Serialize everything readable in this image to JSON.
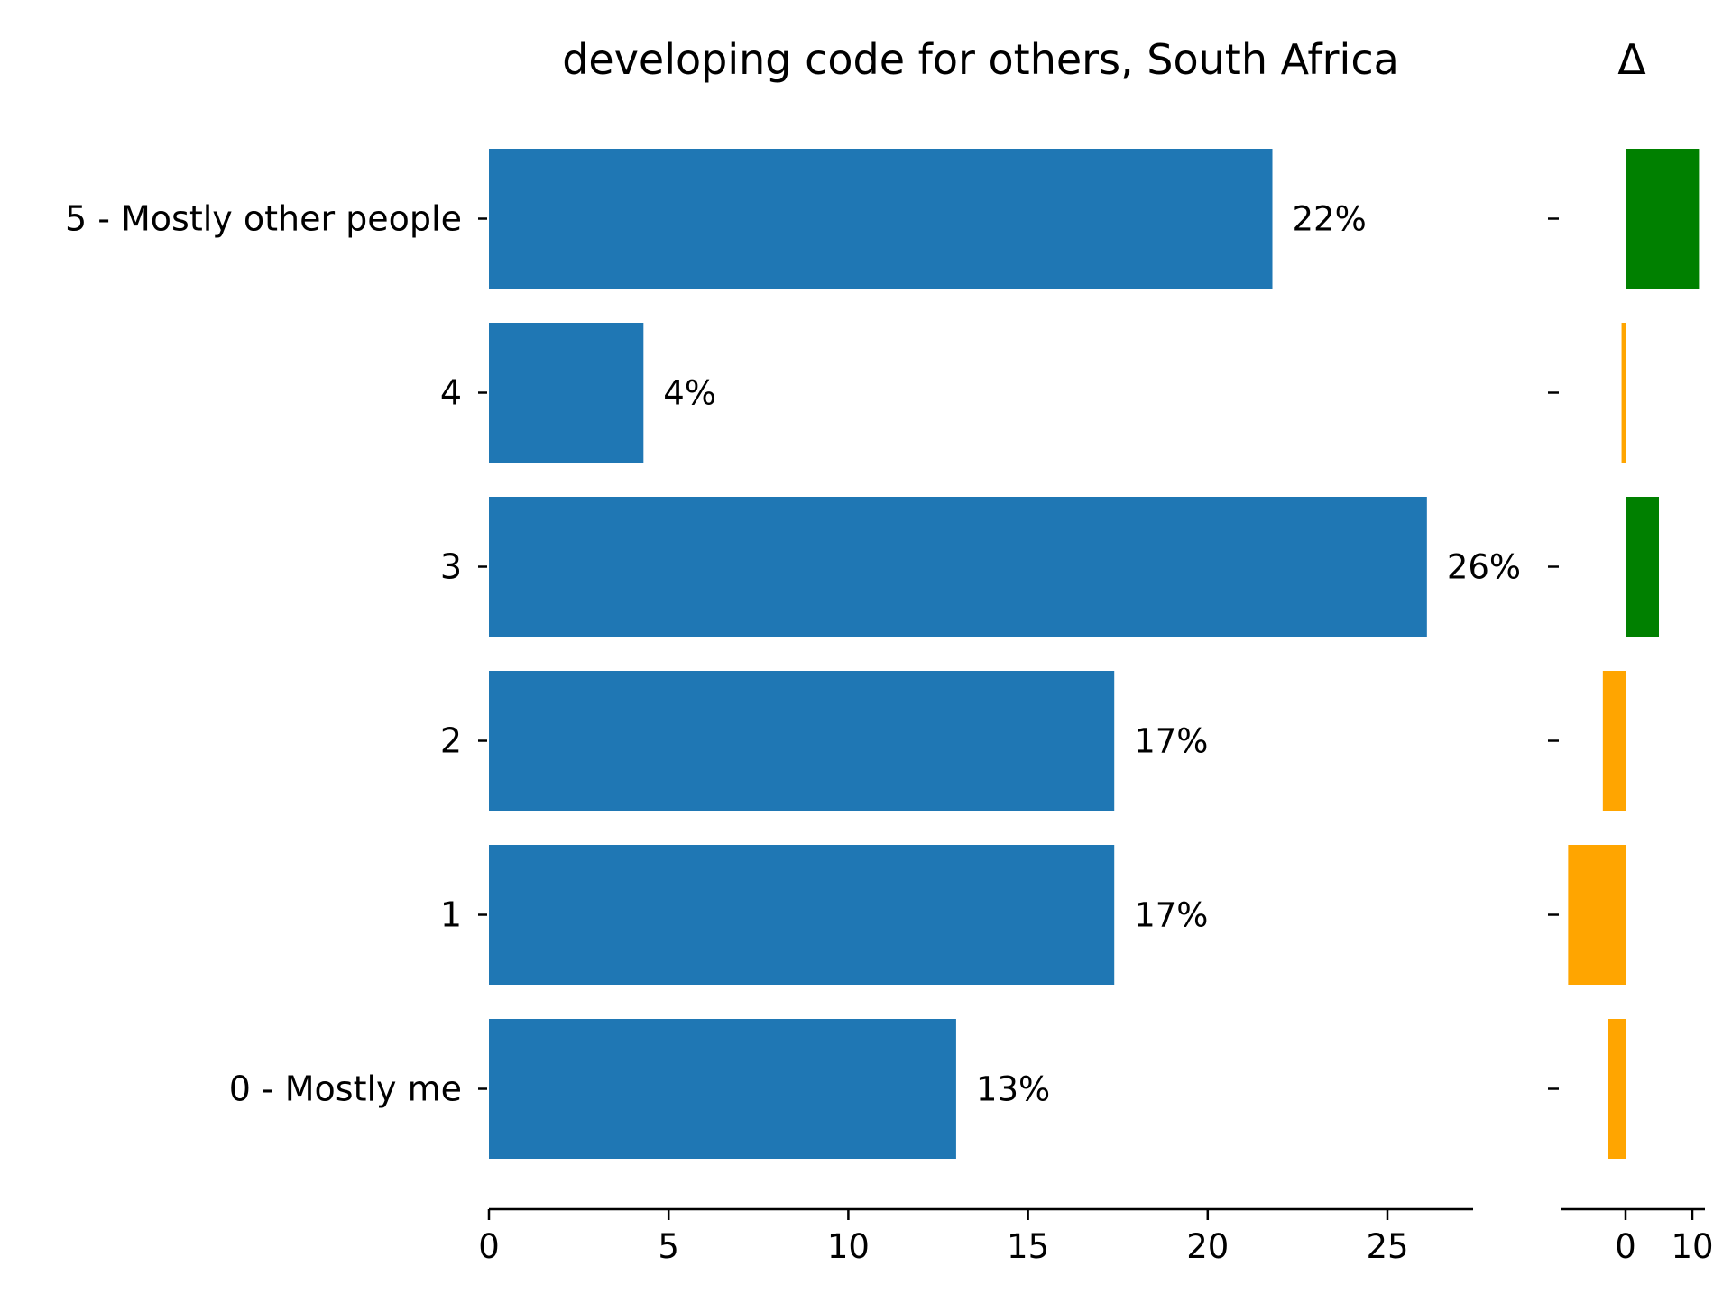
{
  "chart_data": [
    {
      "type": "bar",
      "orientation": "horizontal",
      "title": "developing code for others, South Africa",
      "categories": [
        "5 - Mostly other people",
        "4",
        "3",
        "2",
        "1",
        "0 - Mostly me"
      ],
      "values": [
        21.8,
        4.3,
        26.1,
        17.4,
        17.4,
        13.0
      ],
      "value_labels": [
        "22%",
        "4%",
        "26%",
        "17%",
        "17%",
        "13%"
      ],
      "xlim": [
        0,
        27.5
      ],
      "xticks": [
        0,
        5,
        10,
        15,
        20,
        25
      ],
      "xtick_labels": [
        "0",
        "5",
        "10",
        "15",
        "20",
        "25"
      ],
      "bar_color": "#1f77b4",
      "grid": false
    },
    {
      "type": "bar",
      "orientation": "horizontal",
      "title": "Δ",
      "categories": [
        "5 - Mostly other people",
        "4",
        "3",
        "2",
        "1",
        "0 - Mostly me"
      ],
      "values": [
        11.0,
        -0.6,
        5.0,
        -3.4,
        -8.6,
        -2.6
      ],
      "xlim": [
        -10,
        12
      ],
      "xticks": [
        0,
        10
      ],
      "xtick_labels": [
        "0",
        "10"
      ],
      "positive_color": "#008000",
      "negative_color": "#ffa500",
      "grid": false
    }
  ]
}
